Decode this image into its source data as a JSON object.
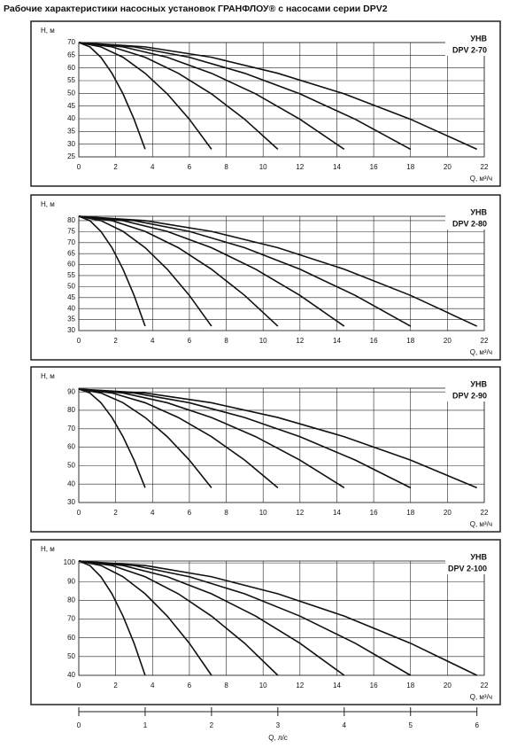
{
  "title": "Рабочие характеристики насосных установок  ГРАНФЛОУ® с насосами серии DPV2",
  "chart_data": [
    {
      "type": "line",
      "y_label": "H, м",
      "x_label": "Q, м³/ч",
      "label_lines": [
        "УНВ",
        "DPV 2-70"
      ],
      "color": "#111111",
      "grid": true,
      "xlim": [
        0,
        22
      ],
      "xticks": [
        0,
        2,
        4,
        6,
        8,
        10,
        12,
        14,
        16,
        18,
        20,
        22
      ],
      "ylim": [
        25,
        70
      ],
      "yticks": [
        25,
        30,
        35,
        40,
        45,
        50,
        55,
        60,
        65,
        70
      ],
      "series": [
        {
          "x": [
            0,
            0.6,
            1.2,
            1.8,
            2.4,
            3,
            3.6
          ],
          "values": [
            70,
            68.3,
            64.2,
            57.9,
            49.8,
            39.8,
            28
          ]
        },
        {
          "x": [
            0,
            1.2,
            2.4,
            3.6,
            4.8,
            6,
            7.2
          ],
          "values": [
            70,
            68.3,
            64.2,
            57.9,
            49.8,
            39.8,
            28
          ]
        },
        {
          "x": [
            0,
            1.8,
            3.6,
            5.4,
            7.2,
            9,
            10.8
          ],
          "values": [
            70,
            68.3,
            64.2,
            57.9,
            49.8,
            39.8,
            28
          ]
        },
        {
          "x": [
            0,
            2.4,
            4.8,
            7.2,
            9.6,
            12,
            14.4
          ],
          "values": [
            70,
            68.3,
            64.2,
            57.9,
            49.8,
            39.8,
            28
          ]
        },
        {
          "x": [
            0,
            3,
            6,
            9,
            12,
            15,
            18
          ],
          "values": [
            70,
            68.3,
            64.2,
            57.9,
            49.8,
            39.8,
            28
          ]
        },
        {
          "x": [
            0,
            3.6,
            7.2,
            10.8,
            14.4,
            18,
            21.6
          ],
          "values": [
            70,
            68.3,
            64.2,
            57.9,
            49.8,
            39.8,
            28
          ]
        }
      ]
    },
    {
      "type": "line",
      "y_label": "H, м",
      "x_label": "Q, м³/ч",
      "label_lines": [
        "УНВ",
        "DPV 2-80"
      ],
      "color": "#111111",
      "grid": true,
      "xlim": [
        0,
        22
      ],
      "xticks": [
        0,
        2,
        4,
        6,
        8,
        10,
        12,
        14,
        16,
        18,
        20,
        22
      ],
      "ylim": [
        30,
        82
      ],
      "yticks": [
        30,
        35,
        40,
        45,
        50,
        55,
        60,
        65,
        70,
        75,
        80
      ],
      "series": [
        {
          "x": [
            0,
            0.6,
            1.2,
            1.8,
            2.4,
            3,
            3.6
          ],
          "values": [
            82,
            80,
            75.1,
            67.7,
            57.9,
            46,
            32
          ]
        },
        {
          "x": [
            0,
            1.2,
            2.4,
            3.6,
            4.8,
            6,
            7.2
          ],
          "values": [
            82,
            80,
            75.1,
            67.7,
            57.9,
            46,
            32
          ]
        },
        {
          "x": [
            0,
            1.8,
            3.6,
            5.4,
            7.2,
            9,
            10.8
          ],
          "values": [
            82,
            80,
            75.1,
            67.7,
            57.9,
            46,
            32
          ]
        },
        {
          "x": [
            0,
            2.4,
            4.8,
            7.2,
            9.6,
            12,
            14.4
          ],
          "values": [
            82,
            80,
            75.1,
            67.7,
            57.9,
            46,
            32
          ]
        },
        {
          "x": [
            0,
            3,
            6,
            9,
            12,
            15,
            18
          ],
          "values": [
            82,
            80,
            75.1,
            67.7,
            57.9,
            46,
            32
          ]
        },
        {
          "x": [
            0,
            3.6,
            7.2,
            10.8,
            14.4,
            18,
            21.6
          ],
          "values": [
            82,
            80,
            75.1,
            67.7,
            57.9,
            46,
            32
          ]
        }
      ]
    },
    {
      "type": "line",
      "y_label": "H, м",
      "x_label": "Q, м³/ч",
      "label_lines": [
        "УНВ",
        "DPV 2-90"
      ],
      "color": "#111111",
      "grid": true,
      "xlim": [
        0,
        22
      ],
      "xticks": [
        0,
        2,
        4,
        6,
        8,
        10,
        12,
        14,
        16,
        18,
        20,
        22
      ],
      "ylim": [
        30,
        92
      ],
      "yticks": [
        30,
        40,
        50,
        60,
        70,
        80,
        90
      ],
      "series": [
        {
          "x": [
            0,
            0.6,
            1.2,
            1.8,
            2.4,
            3,
            3.6
          ],
          "values": [
            91.5,
            89.4,
            84.1,
            76.1,
            65.7,
            53,
            38
          ]
        },
        {
          "x": [
            0,
            1.2,
            2.4,
            3.6,
            4.8,
            6,
            7.2
          ],
          "values": [
            91.5,
            89.4,
            84.1,
            76.1,
            65.7,
            53,
            38
          ]
        },
        {
          "x": [
            0,
            1.8,
            3.6,
            5.4,
            7.2,
            9,
            10.8
          ],
          "values": [
            91.5,
            89.4,
            84.1,
            76.1,
            65.7,
            53,
            38
          ]
        },
        {
          "x": [
            0,
            2.4,
            4.8,
            7.2,
            9.6,
            12,
            14.4
          ],
          "values": [
            91.5,
            89.4,
            84.1,
            76.1,
            65.7,
            53,
            38
          ]
        },
        {
          "x": [
            0,
            3,
            6,
            9,
            12,
            15,
            18
          ],
          "values": [
            91.5,
            89.4,
            84.1,
            76.1,
            65.7,
            53,
            38
          ]
        },
        {
          "x": [
            0,
            3.6,
            7.2,
            10.8,
            14.4,
            18,
            21.6
          ],
          "values": [
            91.5,
            89.4,
            84.1,
            76.1,
            65.7,
            53,
            38
          ]
        }
      ]
    },
    {
      "type": "line",
      "y_label": "H, м",
      "x_label": "Q, м³/ч",
      "label_lines": [
        "УНВ",
        "DPV 2-100"
      ],
      "color": "#111111",
      "grid": true,
      "xlim": [
        0,
        22
      ],
      "xticks": [
        0,
        2,
        4,
        6,
        8,
        10,
        12,
        14,
        16,
        18,
        20,
        22
      ],
      "ylim": [
        40,
        101
      ],
      "yticks": [
        40,
        50,
        60,
        70,
        80,
        90,
        100
      ],
      "series": [
        {
          "x": [
            0,
            0.6,
            1.2,
            1.8,
            2.4,
            3,
            3.6
          ],
          "values": [
            101,
            98.6,
            92.6,
            83.5,
            71.6,
            57.1,
            40
          ]
        },
        {
          "x": [
            0,
            1.2,
            2.4,
            3.6,
            4.8,
            6,
            7.2
          ],
          "values": [
            101,
            98.6,
            92.6,
            83.5,
            71.6,
            57.1,
            40
          ]
        },
        {
          "x": [
            0,
            1.8,
            3.6,
            5.4,
            7.2,
            9,
            10.8
          ],
          "values": [
            101,
            98.6,
            92.6,
            83.5,
            71.6,
            57.1,
            40
          ]
        },
        {
          "x": [
            0,
            2.4,
            4.8,
            7.2,
            9.6,
            12,
            14.4
          ],
          "values": [
            101,
            98.6,
            92.6,
            83.5,
            71.6,
            57.1,
            40
          ]
        },
        {
          "x": [
            0,
            3,
            6,
            9,
            12,
            15,
            18
          ],
          "values": [
            101,
            98.6,
            92.6,
            83.5,
            71.6,
            57.1,
            40
          ]
        },
        {
          "x": [
            0,
            3.6,
            7.2,
            10.8,
            14.4,
            18,
            21.6
          ],
          "values": [
            101,
            98.6,
            92.6,
            83.5,
            71.6,
            57.1,
            40
          ]
        }
      ]
    }
  ],
  "flow_axis": {
    "label": "Q, л/с",
    "xlim": [
      0,
      6
    ],
    "xticks": [
      0,
      1,
      2,
      3,
      4,
      5,
      6
    ]
  }
}
